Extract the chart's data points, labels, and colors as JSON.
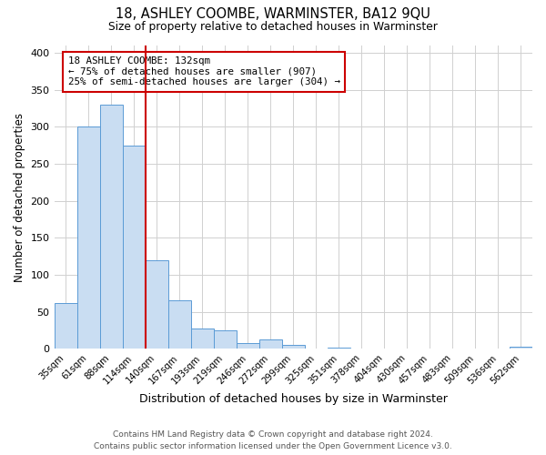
{
  "title": "18, ASHLEY COOMBE, WARMINSTER, BA12 9QU",
  "subtitle": "Size of property relative to detached houses in Warminster",
  "xlabel": "Distribution of detached houses by size in Warminster",
  "ylabel": "Number of detached properties",
  "bar_labels": [
    "35sqm",
    "61sqm",
    "88sqm",
    "114sqm",
    "140sqm",
    "167sqm",
    "193sqm",
    "219sqm",
    "246sqm",
    "272sqm",
    "299sqm",
    "325sqm",
    "351sqm",
    "378sqm",
    "404sqm",
    "430sqm",
    "457sqm",
    "483sqm",
    "509sqm",
    "536sqm",
    "562sqm"
  ],
  "bar_values": [
    62,
    300,
    330,
    275,
    120,
    65,
    27,
    25,
    8,
    12,
    5,
    0,
    2,
    0,
    0,
    0,
    0,
    0,
    0,
    0,
    3
  ],
  "bar_color": "#c9ddf2",
  "bar_edge_color": "#5b9bd5",
  "vline_x_index": 4,
  "vline_color": "#cc0000",
  "annotation_title": "18 ASHLEY COOMBE: 132sqm",
  "annotation_line1": "← 75% of detached houses are smaller (907)",
  "annotation_line2": "25% of semi-detached houses are larger (304) →",
  "annotation_box_color": "#cc0000",
  "ylim": [
    0,
    410
  ],
  "yticks": [
    0,
    50,
    100,
    150,
    200,
    250,
    300,
    350,
    400
  ],
  "footer_line1": "Contains HM Land Registry data © Crown copyright and database right 2024.",
  "footer_line2": "Contains public sector information licensed under the Open Government Licence v3.0.",
  "bg_color": "#ffffff",
  "grid_color": "#d0d0d0"
}
